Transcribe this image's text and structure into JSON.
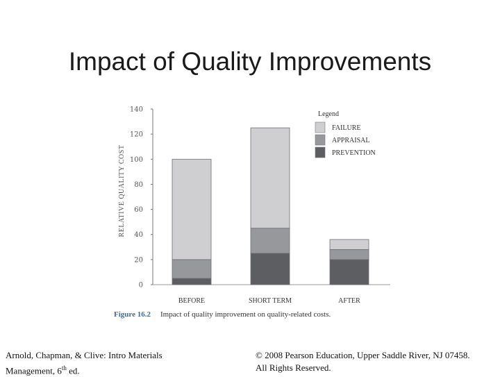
{
  "slide": {
    "title": "Impact of Quality Improvements"
  },
  "chart_data": {
    "type": "bar",
    "stacked": true,
    "categories": [
      "BEFORE",
      "SHORT TERM",
      "AFTER"
    ],
    "series": [
      {
        "name": "PREVENTION",
        "values": [
          5,
          25,
          20
        ]
      },
      {
        "name": "APPRAISAL",
        "values": [
          15,
          20,
          8
        ]
      },
      {
        "name": "FAILURE",
        "values": [
          80,
          80,
          8
        ]
      }
    ],
    "ylabel": "RELATIVE QUALITY COST",
    "ylim": [
      0,
      140
    ],
    "yticks": [
      0,
      20,
      40,
      60,
      80,
      100,
      120,
      140
    ],
    "legend_title": "Legend",
    "legend_items": [
      "FAILURE",
      "APPRAISAL",
      "PREVENTION"
    ],
    "legend_position": "top-right",
    "grid": false,
    "colors": {
      "FAILURE": "#cfcfd1",
      "APPRAISAL": "#97989b",
      "PREVENTION": "#5c5e62"
    }
  },
  "caption": {
    "figure": "Figure 16.2",
    "text": "Impact of quality improvement on quality-related costs."
  },
  "footer": {
    "left_line1": "Arnold, Chapman, & Clive: Intro Materials",
    "left_line2_pre": "Management, 6",
    "left_line2_sup": "th",
    "left_line2_post": " ed.",
    "right_line1": "© 2008 Pearson Education, Upper Saddle River, NJ 07458.",
    "right_line2": "All Rights Reserved."
  }
}
